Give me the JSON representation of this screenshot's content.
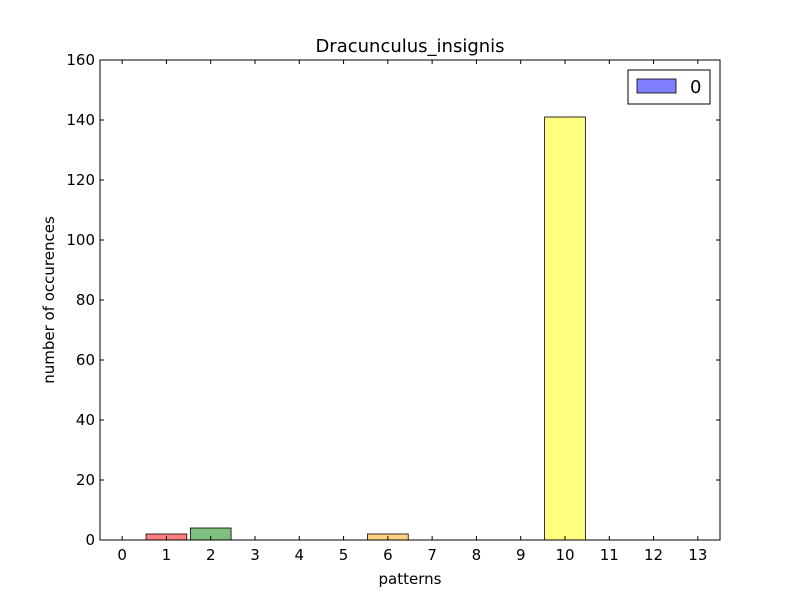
{
  "chart_data": {
    "type": "bar",
    "title": "Dracunculus_insignis",
    "xlabel": "patterns",
    "ylabel": "number of occurences",
    "categories": [
      "0",
      "1",
      "2",
      "3",
      "4",
      "5",
      "6",
      "7",
      "8",
      "9",
      "10",
      "11",
      "12",
      "13"
    ],
    "series": [
      {
        "name": "0",
        "values": [
          0,
          2,
          4,
          0,
          0,
          0,
          2,
          0,
          0,
          0,
          141,
          0,
          0,
          0
        ],
        "colors": [
          "#0000ff",
          "#ff0000",
          "#008000",
          "#0000ff",
          "#0000ff",
          "#0000ff",
          "#ffa500",
          "#0000ff",
          "#0000ff",
          "#0000ff",
          "#ffff00",
          "#0000ff",
          "#0000ff",
          "#0000ff"
        ]
      }
    ],
    "ylim": [
      0,
      160
    ],
    "yticks": [
      "0",
      "20",
      "40",
      "60",
      "80",
      "100",
      "120",
      "140",
      "160"
    ],
    "xlim": [
      -0.5,
      13.5
    ],
    "legend": {
      "position": "top-right",
      "entries": [
        {
          "label": "0",
          "color": "#0000ff"
        }
      ]
    },
    "grid": false
  }
}
